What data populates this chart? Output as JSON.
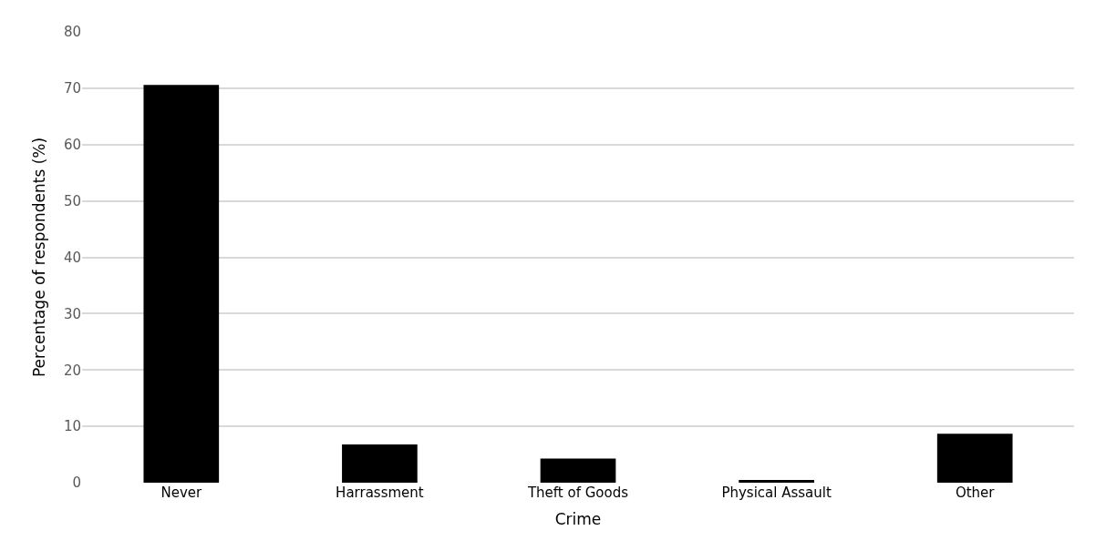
{
  "chart_data": {
    "type": "bar",
    "xlabel": "Crime",
    "ylabel": "Percentage of respondents (%)",
    "categories": [
      "Never",
      "Harrassment",
      "Theft of Goods",
      "Physical Assault",
      "Other"
    ],
    "values": [
      70.6,
      6.8,
      4.3,
      0.5,
      8.7
    ],
    "color": "#000000",
    "ylim": [
      0,
      80
    ],
    "yticks": [
      0,
      10,
      20,
      30,
      40,
      50,
      60,
      70,
      80
    ],
    "grid": "y",
    "legend": false
  }
}
